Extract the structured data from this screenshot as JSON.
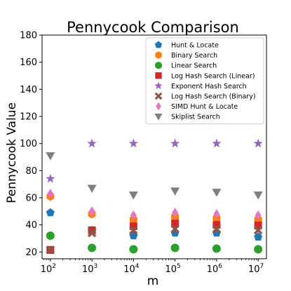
{
  "chart_data": {
    "type": "scatter",
    "title": "Pennycook Comparison",
    "xlabel": "m",
    "ylabel": "Pennycook Value",
    "x_scale": "log",
    "x": [
      100,
      1000,
      10000,
      100000,
      1000000,
      10000000
    ],
    "x_tick_labels": [
      {
        "base": "10",
        "exp": "2"
      },
      {
        "base": "10",
        "exp": "3"
      },
      {
        "base": "10",
        "exp": "4"
      },
      {
        "base": "10",
        "exp": "5"
      },
      {
        "base": "10",
        "exp": "6"
      },
      {
        "base": "10",
        "exp": "7"
      }
    ],
    "ylim": [
      15,
      180
    ],
    "y_ticks": [
      20,
      40,
      60,
      80,
      100,
      120,
      140,
      160,
      180
    ],
    "grid": false,
    "legend_position": "top-right",
    "series": [
      {
        "name": "Hunt & Locate",
        "marker": "pentagon",
        "color": "#1f77b4",
        "values": [
          49,
          36,
          32,
          34,
          34,
          31
        ]
      },
      {
        "name": "Binary Search",
        "marker": "hexagon",
        "color": "#ff7f0e",
        "values": [
          61,
          48,
          44,
          46,
          45,
          44
        ]
      },
      {
        "name": "Linear Search",
        "marker": "circle",
        "color": "#2ca02c",
        "values": [
          32,
          23,
          22,
          23,
          22.5,
          22
        ]
      },
      {
        "name": "Log Hash Search (Linear)",
        "marker": "square",
        "color": "#d62728",
        "values": [
          21.5,
          36,
          39,
          41,
          40,
          39.5
        ]
      },
      {
        "name": "Exponent Hash Search",
        "marker": "star",
        "color": "#9467bd",
        "values": [
          74,
          100,
          100,
          100,
          100,
          100
        ]
      },
      {
        "name": "Log Hash Search (Binary)",
        "marker": "x",
        "color": "#8c564b",
        "values": [
          21.5,
          34,
          36,
          37,
          37,
          36
        ]
      },
      {
        "name": "SIMD Hunt & Locate",
        "marker": "diamond",
        "color": "#e377c2",
        "values": [
          63,
          50,
          47,
          49,
          48,
          47
        ]
      },
      {
        "name": "Skiplist Search",
        "marker": "triangle-down",
        "color": "#7f7f7f",
        "values": [
          91,
          67,
          62,
          65,
          64,
          62
        ]
      }
    ]
  }
}
